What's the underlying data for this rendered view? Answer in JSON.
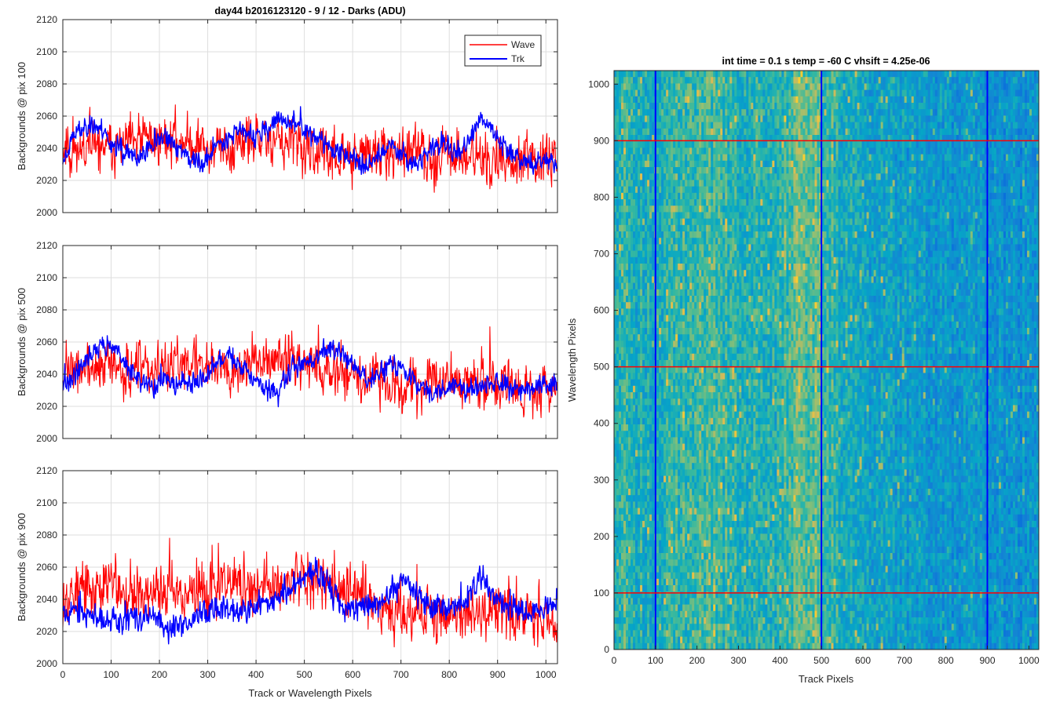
{
  "chart_data": [
    {
      "type": "line",
      "title": "day44 b2016123120 - 9 / 12 - Darks (ADU)",
      "xlabel": "",
      "ylabel": "Backgrounds @ pix 100",
      "xlim": [
        0,
        1024
      ],
      "ylim": [
        2000,
        2120
      ],
      "xticks": [
        "0",
        "100",
        "200",
        "300",
        "400",
        "500",
        "600",
        "700",
        "800",
        "900",
        "1000"
      ],
      "yticks": [
        "2000",
        "2020",
        "2040",
        "2060",
        "2080",
        "2100",
        "2120"
      ],
      "grid": true,
      "legend": "top-right",
      "series": [
        {
          "name": "Wave",
          "color": "#ff0000",
          "base": [
            2040,
            2041,
            2040,
            2039,
            2040,
            2042,
            2044,
            2045,
            2046,
            2045,
            2043,
            2041,
            2040,
            2039,
            2041,
            2043,
            2045,
            2044,
            2041,
            2038,
            2036,
            2035,
            2035,
            2034,
            2036,
            2036,
            2035,
            2036,
            2037,
            2036,
            2035,
            2035,
            2035,
            2034,
            2032,
            2032,
            2031,
            2031,
            2031,
            2033
          ],
          "amp": 10,
          "seed": 11
        },
        {
          "name": "Trk",
          "color": "#0000ff",
          "base": [
            2032,
            2050,
            2055,
            2052,
            2042,
            2036,
            2033,
            2040,
            2046,
            2042,
            2034,
            2030,
            2040,
            2048,
            2052,
            2047,
            2050,
            2058,
            2056,
            2052,
            2046,
            2040,
            2037,
            2032,
            2030,
            2035,
            2043,
            2034,
            2031,
            2039,
            2044,
            2036,
            2043,
            2058,
            2050,
            2040,
            2034,
            2030,
            2034,
            2030
          ],
          "amp": 4,
          "seed": 23
        }
      ]
    },
    {
      "type": "line",
      "title": "",
      "xlabel": "",
      "ylabel": "Backgrounds @ pix 500",
      "xlim": [
        0,
        1024
      ],
      "ylim": [
        2000,
        2120
      ],
      "xticks": [
        "0",
        "100",
        "200",
        "300",
        "400",
        "500",
        "600",
        "700",
        "800",
        "900",
        "1000"
      ],
      "yticks": [
        "2000",
        "2020",
        "2040",
        "2060",
        "2080",
        "2100",
        "2120"
      ],
      "grid": true,
      "series": [
        {
          "name": "Wave",
          "color": "#ff0000",
          "base": [
            2040,
            2042,
            2043,
            2044,
            2045,
            2043,
            2041,
            2041,
            2042,
            2044,
            2047,
            2048,
            2047,
            2046,
            2045,
            2046,
            2048,
            2049,
            2050,
            2048,
            2045,
            2043,
            2042,
            2040,
            2037,
            2035,
            2034,
            2033,
            2033,
            2034,
            2035,
            2034,
            2033,
            2033,
            2032,
            2031,
            2030,
            2030,
            2032,
            2032
          ],
          "amp": 10,
          "seed": 37
        },
        {
          "name": "Trk",
          "color": "#0000ff",
          "base": [
            2032,
            2040,
            2052,
            2057,
            2058,
            2045,
            2036,
            2032,
            2036,
            2035,
            2033,
            2036,
            2046,
            2052,
            2045,
            2036,
            2032,
            2028,
            2042,
            2048,
            2050,
            2058,
            2052,
            2045,
            2036,
            2040,
            2046,
            2042,
            2033,
            2028,
            2030,
            2034,
            2030,
            2032,
            2035,
            2032,
            2031,
            2030,
            2034,
            2032
          ],
          "amp": 4,
          "seed": 41
        }
      ]
    },
    {
      "type": "line",
      "title": "",
      "xlabel": "Track or Wavelength Pixels",
      "ylabel": "Backgrounds @ pix 900",
      "xlim": [
        0,
        1024
      ],
      "ylim": [
        2000,
        2120
      ],
      "xticks": [
        "0",
        "100",
        "200",
        "300",
        "400",
        "500",
        "600",
        "700",
        "800",
        "900",
        "1000"
      ],
      "yticks": [
        "2000",
        "2020",
        "2040",
        "2060",
        "2080",
        "2100",
        "2120"
      ],
      "grid": true,
      "series": [
        {
          "name": "Wave",
          "color": "#ff0000",
          "base": [
            2040,
            2044,
            2046,
            2048,
            2047,
            2045,
            2044,
            2043,
            2042,
            2044,
            2045,
            2044,
            2047,
            2049,
            2048,
            2046,
            2047,
            2049,
            2052,
            2055,
            2054,
            2050,
            2048,
            2047,
            2040,
            2036,
            2034,
            2033,
            2032,
            2031,
            2030,
            2030,
            2031,
            2032,
            2031,
            2030,
            2030,
            2029,
            2029,
            2030
          ],
          "amp": 11,
          "seed": 53
        },
        {
          "name": "Trk",
          "color": "#0000ff",
          "base": [
            2035,
            2032,
            2030,
            2029,
            2028,
            2027,
            2028,
            2027,
            2025,
            2024,
            2027,
            2032,
            2035,
            2033,
            2031,
            2034,
            2038,
            2042,
            2046,
            2054,
            2058,
            2048,
            2036,
            2034,
            2036,
            2038,
            2044,
            2054,
            2042,
            2036,
            2034,
            2036,
            2040,
            2054,
            2042,
            2036,
            2034,
            2032,
            2034,
            2040
          ],
          "amp": 5,
          "seed": 67
        }
      ]
    },
    {
      "type": "heatmap",
      "title": "int time = 0.1 s   temp = -60 C   vhsift = 4.25e-06",
      "xlabel": "Track Pixels",
      "ylabel": "Wavelength Pixels",
      "xlim": [
        0,
        1024
      ],
      "ylim": [
        0,
        1024
      ],
      "xticks": [
        "0",
        "100",
        "200",
        "300",
        "400",
        "500",
        "600",
        "700",
        "800",
        "900",
        "1000"
      ],
      "yticks": [
        "0",
        "100",
        "200",
        "300",
        "400",
        "500",
        "600",
        "700",
        "800",
        "900",
        "1000"
      ],
      "colormap": "parula",
      "vertical_markers": [
        100,
        500,
        900
      ],
      "vertical_marker_color": "#0000ff",
      "horizontal_markers": [
        100,
        500,
        900
      ],
      "horizontal_marker_color": "#ff0000",
      "column_profile": [
        0.58,
        0.6,
        0.57,
        0.55,
        0.56,
        0.58,
        0.6,
        0.62,
        0.63,
        0.62,
        0.6,
        0.59,
        0.58,
        0.57,
        0.56,
        0.58,
        0.62,
        0.66,
        0.67,
        0.64,
        0.6,
        0.56,
        0.53,
        0.51,
        0.5,
        0.5,
        0.49,
        0.48,
        0.48,
        0.47,
        0.47,
        0.46,
        0.46,
        0.45,
        0.45,
        0.44,
        0.44,
        0.44,
        0.43,
        0.44
      ]
    }
  ]
}
